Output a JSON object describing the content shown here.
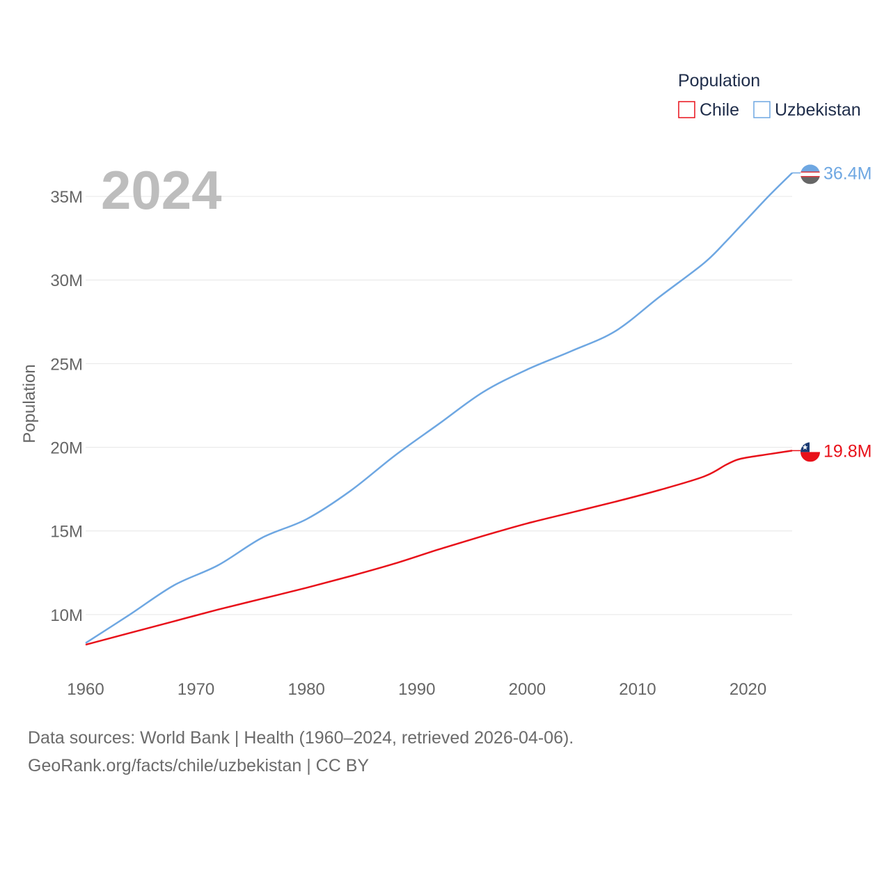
{
  "chart_data": {
    "type": "line",
    "title": "",
    "year_label": "2024",
    "xlabel": "",
    "ylabel": "Population",
    "xlim": [
      1960,
      2024
    ],
    "ylim": [
      7500000,
      37000000
    ],
    "x_ticks": [
      1960,
      1970,
      1980,
      1990,
      2000,
      2010,
      2020
    ],
    "x_tick_labels": [
      "1960",
      "1970",
      "1980",
      "1990",
      "2000",
      "2010",
      "2020"
    ],
    "y_ticks": [
      10000000,
      15000000,
      20000000,
      25000000,
      30000000,
      35000000
    ],
    "y_tick_labels": [
      "10M",
      "15M",
      "20M",
      "25M",
      "30M",
      "35M"
    ],
    "legend_title": "Population",
    "legend_position": "top-right",
    "x": [
      1960,
      1964,
      1968,
      1972,
      1976,
      1980,
      1984,
      1988,
      1992,
      1996,
      2000,
      2004,
      2008,
      2012,
      2016,
      2018,
      2019,
      2020,
      2022,
      2024
    ],
    "series": [
      {
        "name": "Chile",
        "color": "#e8111a",
        "end_label": "19.8M",
        "values": [
          8200000,
          8900000,
          9600000,
          10300000,
          10950000,
          11600000,
          12300000,
          13050000,
          13900000,
          14700000,
          15450000,
          16100000,
          16750000,
          17450000,
          18250000,
          18950000,
          19250000,
          19400000,
          19600000,
          19800000
        ]
      },
      {
        "name": "Uzbekistan",
        "color": "#6ea7e2",
        "end_label": "36.4M",
        "values": [
          8300000,
          10000000,
          11750000,
          12950000,
          14600000,
          15700000,
          17400000,
          19500000,
          21400000,
          23300000,
          24650000,
          25750000,
          26950000,
          29000000,
          31000000,
          32300000,
          33000000,
          33700000,
          35100000,
          36400000
        ]
      }
    ]
  },
  "footer": {
    "line1": "Data sources: World Bank | Health (1960–2024, retrieved 2026-04-06).",
    "line2": "GeoRank.org/facts/chile/uzbekistan | CC BY"
  }
}
